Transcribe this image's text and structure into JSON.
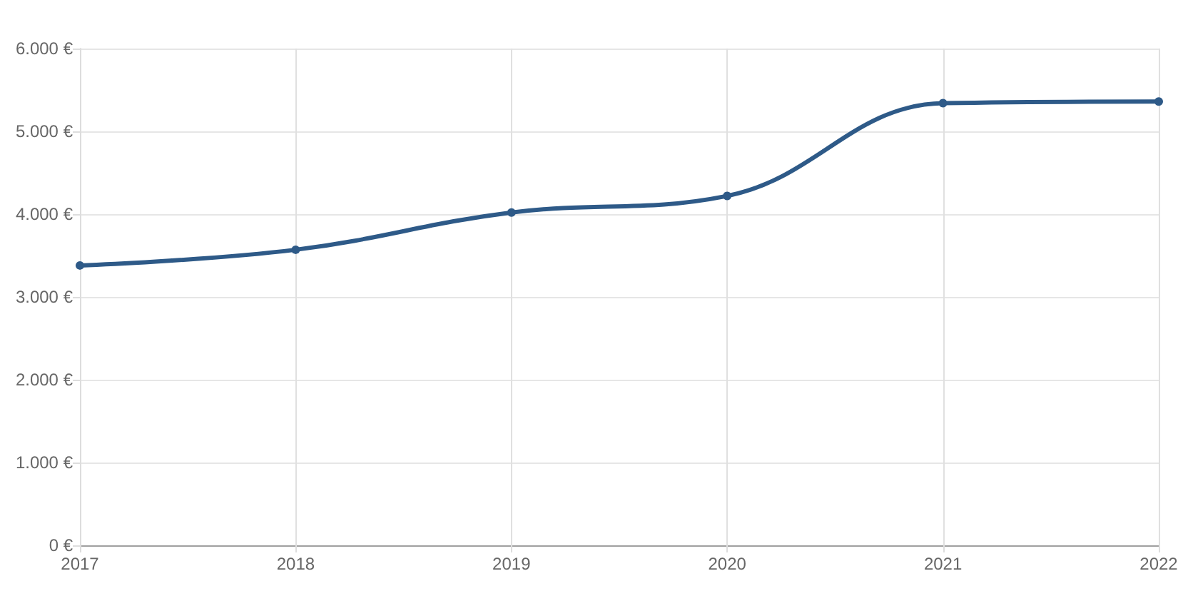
{
  "chart_data": {
    "type": "line",
    "categories": [
      "2017",
      "2018",
      "2019",
      "2020",
      "2021",
      "2022"
    ],
    "series": [
      {
        "color": "#2e5a88",
        "values": [
          3380,
          3570,
          4020,
          4220,
          5340,
          5360
        ]
      }
    ],
    "ylim": [
      0,
      6000
    ],
    "yticks": [
      {
        "value": 0,
        "label": "0 €"
      },
      {
        "value": 1000,
        "label": "1.000 €"
      },
      {
        "value": 2000,
        "label": "2.000 €"
      },
      {
        "value": 3000,
        "label": "3.000 €"
      },
      {
        "value": 4000,
        "label": "4.000 €"
      },
      {
        "value": 5000,
        "label": "5.000 €"
      },
      {
        "value": 6000,
        "label": "6.000 €"
      }
    ],
    "grid": true,
    "marker": "circle",
    "line_style": "solid"
  }
}
